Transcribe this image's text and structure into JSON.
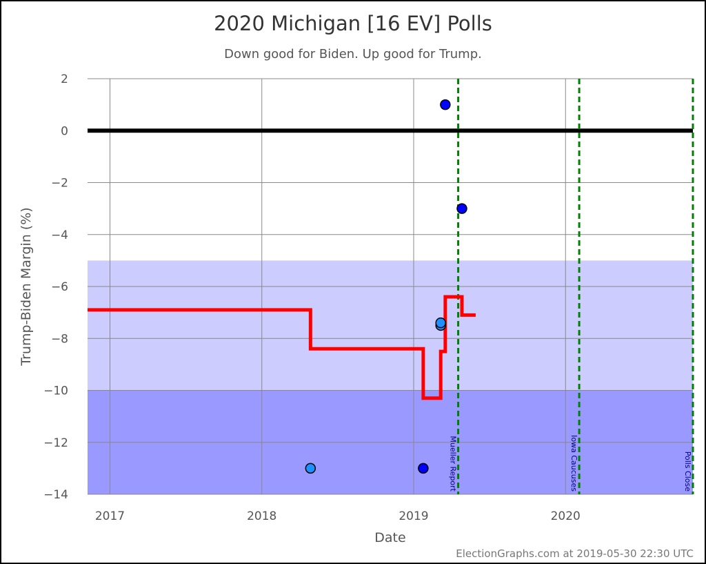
{
  "chart_data": {
    "type": "scatter",
    "title": "2020 Michigan [16 EV] Polls",
    "subtitle": "Down good for Biden. Up good for Trump.",
    "xlabel": "Date",
    "ylabel": "Trump-Biden Margin (%)",
    "xlim": [
      "2016-11-08",
      "2020-11-03"
    ],
    "ylim": [
      -14,
      2
    ],
    "x_ticks": [
      "2017",
      "2018",
      "2019",
      "2020"
    ],
    "y_ticks": [
      2,
      0,
      -2,
      -4,
      -6,
      -8,
      -10,
      -12,
      -14
    ],
    "grid": true,
    "zero_line": 0,
    "bands": [
      {
        "from": -10,
        "to": -5,
        "color": "#ccccff"
      },
      {
        "from": -14,
        "to": -10,
        "color": "#9999ff"
      }
    ],
    "polls": [
      {
        "date": "2018-04-28",
        "margin": -13,
        "color": "#1e90ff"
      },
      {
        "date": "2019-01-24",
        "margin": -13,
        "color": "#0000ff"
      },
      {
        "date": "2019-03-07",
        "margin": -7.5,
        "color": "#1e90ff"
      },
      {
        "date": "2019-03-07",
        "margin": -7.4,
        "color": "#1e90ff"
      },
      {
        "date": "2019-03-18",
        "margin": 1,
        "color": "#0000ff"
      },
      {
        "date": "2019-04-27",
        "margin": -3,
        "color": "#0000ff"
      }
    ],
    "average": {
      "color": "#ff0000",
      "steps": [
        {
          "date": "2016-11-08",
          "margin": -6.9
        },
        {
          "date": "2018-04-28",
          "margin": -8.4
        },
        {
          "date": "2019-01-24",
          "margin": -10.3
        },
        {
          "date": "2019-03-07",
          "margin": -8.5
        },
        {
          "date": "2019-03-18",
          "margin": -6.4
        },
        {
          "date": "2019-04-27",
          "margin": -7.1
        },
        {
          "date": "2019-05-30",
          "margin": -7.1
        }
      ]
    },
    "events": [
      {
        "label": "Mueller Report",
        "date": "2019-04-18"
      },
      {
        "label": "Iowa Caucuses",
        "date": "2020-02-03"
      },
      {
        "label": "Polls Close",
        "date": "2020-11-03"
      }
    ],
    "event_color": "#008000"
  },
  "footer": "ElectionGraphs.com at 2019-05-30 22:30 UTC"
}
